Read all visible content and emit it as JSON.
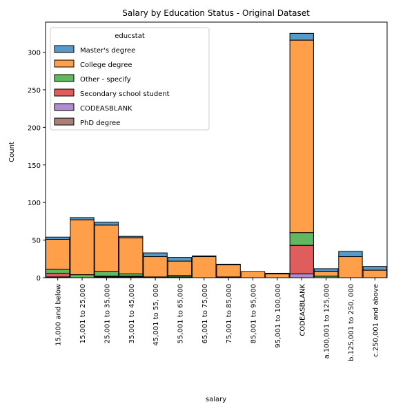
{
  "chart_data": {
    "type": "bar",
    "stacked": true,
    "title": "Salary by Education Status - Original Dataset",
    "xlabel": "salary",
    "ylabel": "Count",
    "ylim": [
      0,
      340
    ],
    "yticks": [
      0,
      50,
      100,
      150,
      200,
      250,
      300
    ],
    "grid": false,
    "legend": {
      "title": "educstat",
      "placement": "top-left"
    },
    "categories": [
      "15,000 and below",
      "15,001 to 25,000",
      "25,001 to 35,000",
      "35,001 to 45,000",
      "45,001 to 55, 000",
      "55,001 to 65,000",
      "65,001 to 75,000",
      "75,001 to 85,000",
      "85,001 to 95,000",
      "95,001 to 100,000",
      "CODEASBLANK",
      "a.100,001 to 125,000",
      "b.125,001 to 250, 000",
      "c.250,001 and above"
    ],
    "series": [
      {
        "name": "PhD degree",
        "color": "#8c564b",
        "values": [
          1,
          0,
          1,
          1,
          0,
          0,
          0,
          0,
          0,
          0,
          0,
          0,
          0,
          0
        ]
      },
      {
        "name": "CODEASBLANK",
        "color": "#9467bd",
        "values": [
          0,
          0,
          0,
          0,
          0,
          0,
          0,
          0,
          0,
          0,
          5,
          0,
          0,
          0
        ]
      },
      {
        "name": "Secondary school student",
        "color": "#d62728",
        "values": [
          5,
          0,
          1,
          1,
          1,
          1,
          0,
          1,
          0,
          0,
          38,
          0,
          0,
          0
        ]
      },
      {
        "name": "Other - specify",
        "color": "#2ca02c",
        "values": [
          5,
          4,
          6,
          3,
          0,
          2,
          0,
          0,
          0,
          0,
          17,
          2,
          0,
          0
        ]
      },
      {
        "name": "College degree",
        "color": "#ff7f0e",
        "values": [
          40,
          73,
          62,
          48,
          27,
          19,
          28,
          16,
          8,
          5,
          256,
          6,
          28,
          10
        ]
      },
      {
        "name": "Master's degree",
        "color": "#1f77b4",
        "values": [
          3,
          3,
          4,
          2,
          5,
          5,
          1,
          1,
          0,
          1,
          9,
          4,
          7,
          5
        ]
      }
    ],
    "legend_order": [
      "Master's degree",
      "College degree",
      "Other - specify",
      "Secondary school student",
      "CODEASBLANK",
      "PhD degree"
    ]
  }
}
